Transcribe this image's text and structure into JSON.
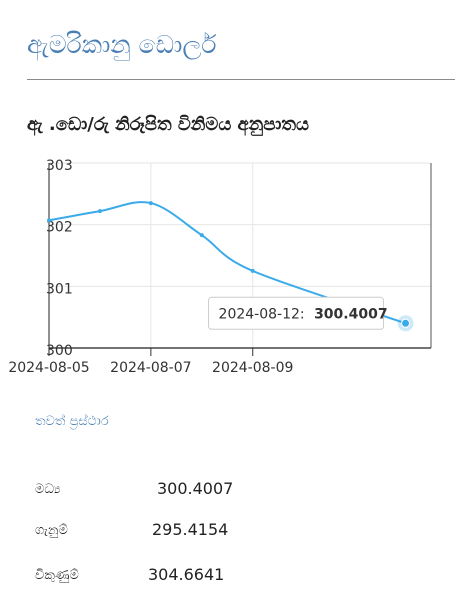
{
  "page": {
    "title": "ඇමරිකානු ඩොලර්",
    "section_title": "ඇ .ඩො/රු නිරූපිත විනිමය අනුපාතය",
    "more_link": "තවත් ප්‍රස්ථාර"
  },
  "tooltip": {
    "date": "2024-08-12:",
    "value": "300.4007"
  },
  "stats": [
    {
      "label": "මධ්‍ය",
      "value": "300.4007"
    },
    {
      "label": "ගැනුම්",
      "value": "295.4154"
    },
    {
      "label": "විකුණුම්",
      "value": "304.6641"
    }
  ],
  "colors": {
    "accent": "#4a7fb5",
    "line": "#3aabe8",
    "grid": "#e6e6e6"
  },
  "chart_data": {
    "type": "line",
    "x": [
      "2024-08-05",
      "2024-08-06",
      "2024-08-07",
      "2024-08-08",
      "2024-08-09",
      "2024-08-12"
    ],
    "series": [
      {
        "values": [
          302.07,
          302.22,
          302.35,
          301.83,
          301.25,
          300.4007
        ]
      }
    ],
    "xticks": [
      "2024-08-05",
      "2024-08-07",
      "2024-08-09"
    ],
    "yticks": [
      300,
      301,
      302,
      303
    ],
    "ylim": [
      300,
      303
    ],
    "title": "",
    "xlabel": "",
    "ylabel": "",
    "grid": true,
    "highlight": {
      "date": "2024-08-12",
      "value": 300.4007
    }
  }
}
